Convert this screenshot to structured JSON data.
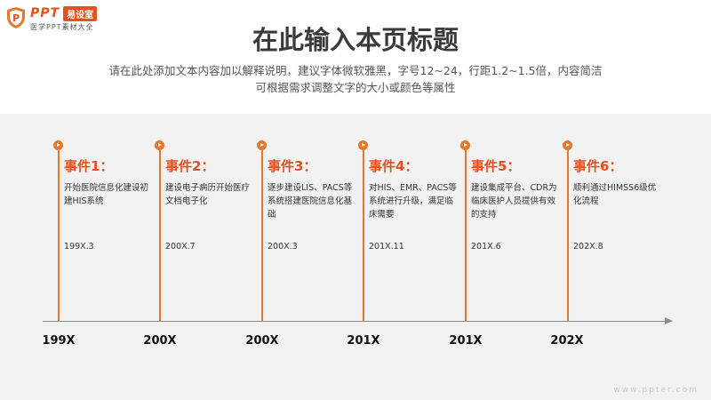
{
  "logo": {
    "ppt": "PPT",
    "tag": "易设室",
    "sub": "医学PPT素材大全"
  },
  "title": "在此输入本页标题",
  "subtitle": {
    "line1": "请在此处添加文本内容加以解释说明，建议字体微软雅黑，字号12~24，行距1.2~1.5倍，内容简洁",
    "line2": "可根据需求调整文字的大小或颜色等属性"
  },
  "events": [
    {
      "title": "事件1：",
      "desc": "开始医院信息化建设初建HIS系统",
      "date": "199X.3"
    },
    {
      "title": "事件2：",
      "desc": "建设电子病历开始医疗文档电子化",
      "date": "200X.7"
    },
    {
      "title": "事件3：",
      "desc": "逐步建设LIS、PACS等系统搭建医院信息化基础",
      "date": "200X.3"
    },
    {
      "title": "事件4：",
      "desc": "对HIS、EMR、PACS等系统进行升级，满足临床需要",
      "date": "201X.11"
    },
    {
      "title": "事件5：",
      "desc": "建设集成平台、CDR为临床医护人员提供有效的支持",
      "date": "201X.6"
    },
    {
      "title": "事件6：",
      "desc": "顺利通过HIMSS6级优化流程",
      "date": "202X.8"
    }
  ],
  "years": [
    "199X",
    "200X",
    "200X",
    "201X",
    "201X",
    "202X"
  ],
  "watermark": "www.ppter.com",
  "colors": {
    "accent": "#e5782a",
    "title_accent": "#e5501e",
    "band": "#f2f2f2",
    "axis": "#8a8a8a"
  }
}
